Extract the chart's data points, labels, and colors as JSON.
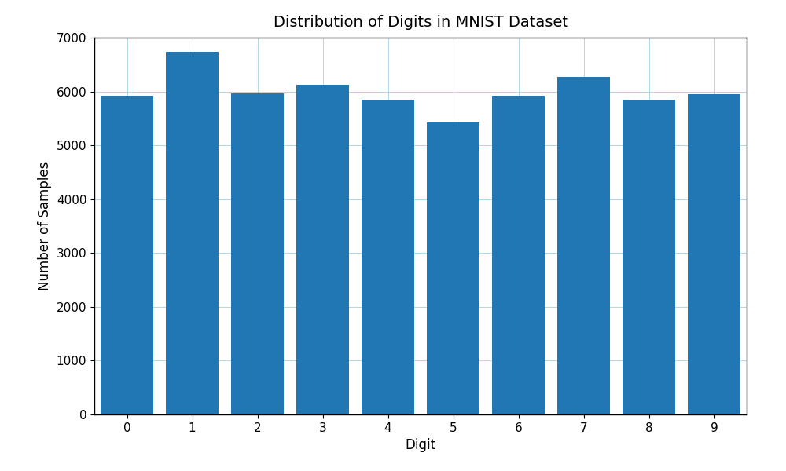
{
  "categories": [
    0,
    1,
    2,
    3,
    4,
    5,
    6,
    7,
    8,
    9
  ],
  "values": [
    5923,
    6742,
    5958,
    6131,
    5842,
    5421,
    5918,
    6265,
    5851,
    5949
  ],
  "bar_color": "#2077b4",
  "title": "Distribution of Digits in MNIST Dataset",
  "xlabel": "Digit",
  "ylabel": "Number of Samples",
  "ylim": [
    0,
    7000
  ],
  "title_fontsize": 14,
  "label_fontsize": 12,
  "tick_fontsize": 11,
  "grid": true,
  "background_color": "#ffffff",
  "bar_width": 0.8
}
